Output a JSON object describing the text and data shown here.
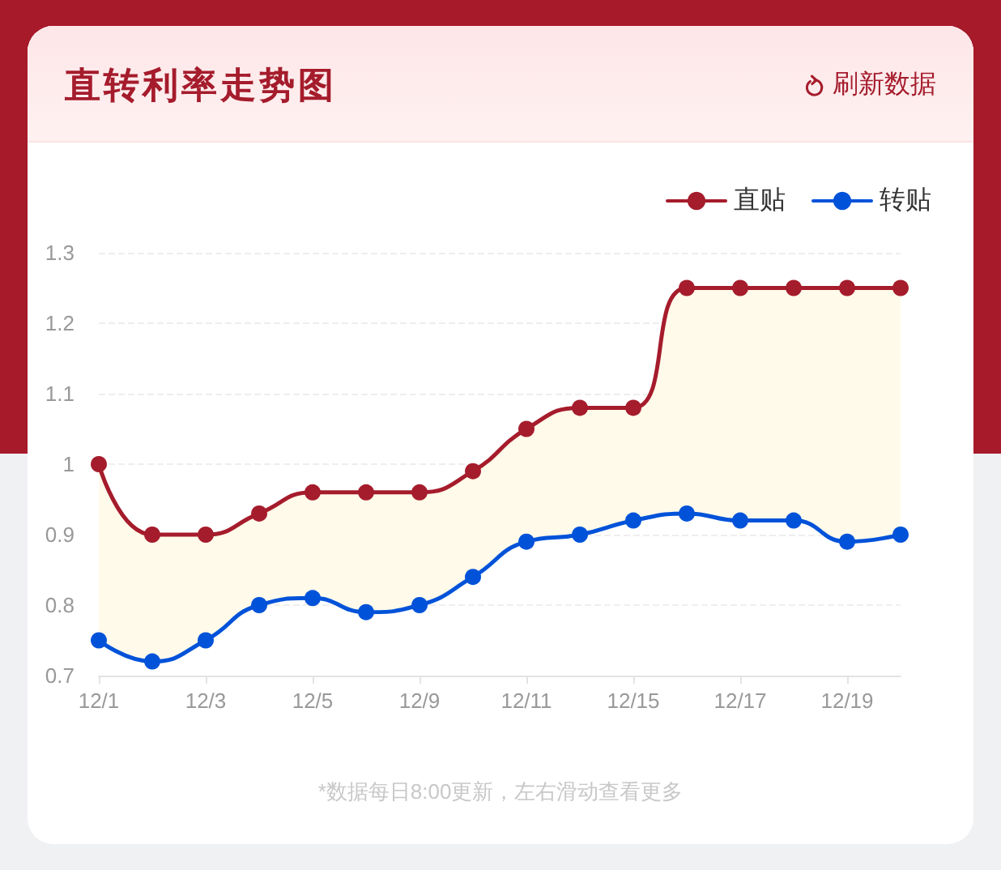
{
  "chart_data": {
    "type": "line",
    "title": "直转利率走势图",
    "categories": [
      "12/1",
      null,
      "12/3",
      null,
      "12/5",
      null,
      "12/9",
      null,
      "12/11",
      null,
      "12/15",
      null,
      "12/17",
      null,
      "12/19",
      null
    ],
    "series": [
      {
        "name": "直贴",
        "color": "#a51c2c",
        "values": [
          1.0,
          0.9,
          0.9,
          0.93,
          0.96,
          0.96,
          0.96,
          0.99,
          1.05,
          1.08,
          1.08,
          1.25,
          1.25,
          1.25,
          1.25,
          1.25
        ],
        "lower": [
          0.75,
          0.72,
          0.75,
          0.8,
          0.81,
          0.79,
          0.8,
          0.84,
          0.89,
          0.9,
          0.92,
          0.93,
          0.92,
          0.92,
          0.89,
          0.9
        ],
        "upper": [
          1.0,
          0.9,
          0.9,
          0.93,
          0.96,
          0.96,
          0.96,
          0.99,
          1.05,
          1.08,
          1.08,
          1.25,
          1.25,
          1.25,
          1.25,
          1.25
        ]
      },
      {
        "name": "转贴",
        "color": "#0052d9",
        "values": [
          0.75,
          0.72,
          0.75,
          0.8,
          0.81,
          0.79,
          0.8,
          0.84,
          0.89,
          0.9,
          0.92,
          0.93,
          0.92,
          0.92,
          0.89,
          0.9
        ]
      }
    ],
    "ylim": [
      0.7,
      1.3
    ],
    "yticks": [
      0.7,
      0.8,
      0.9,
      1,
      1.1,
      1.2,
      1.3
    ],
    "grid": "y",
    "legend": "top right",
    "marker": "circle",
    "line_style": "solid",
    "annotations": [
      "刷新数据",
      "*数据每日8:00更新，左右滑动查看更多"
    ]
  }
}
